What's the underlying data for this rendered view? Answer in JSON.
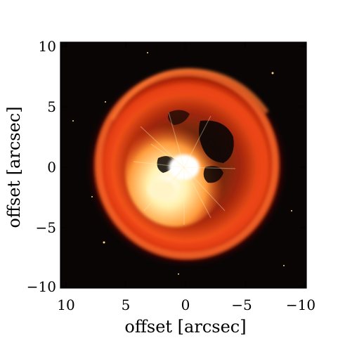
{
  "figure": {
    "xlabel": "offset [arcsec]",
    "ylabel": "offset [arcsec]",
    "x_ticks": [
      "10",
      "5",
      "0",
      "−5",
      "−10"
    ],
    "y_ticks": [
      "10",
      "5",
      "0",
      "−5",
      "−10"
    ],
    "colors": {
      "background": "#0a0505",
      "shell_dark": "#7a0a00",
      "shell_mid": "#d8280a",
      "shell_bright": "#ff6a2a",
      "core_hot": "#ffe6a0",
      "core_white": "#ffffff",
      "frame": "#000000"
    },
    "colormap": "hot"
  }
}
